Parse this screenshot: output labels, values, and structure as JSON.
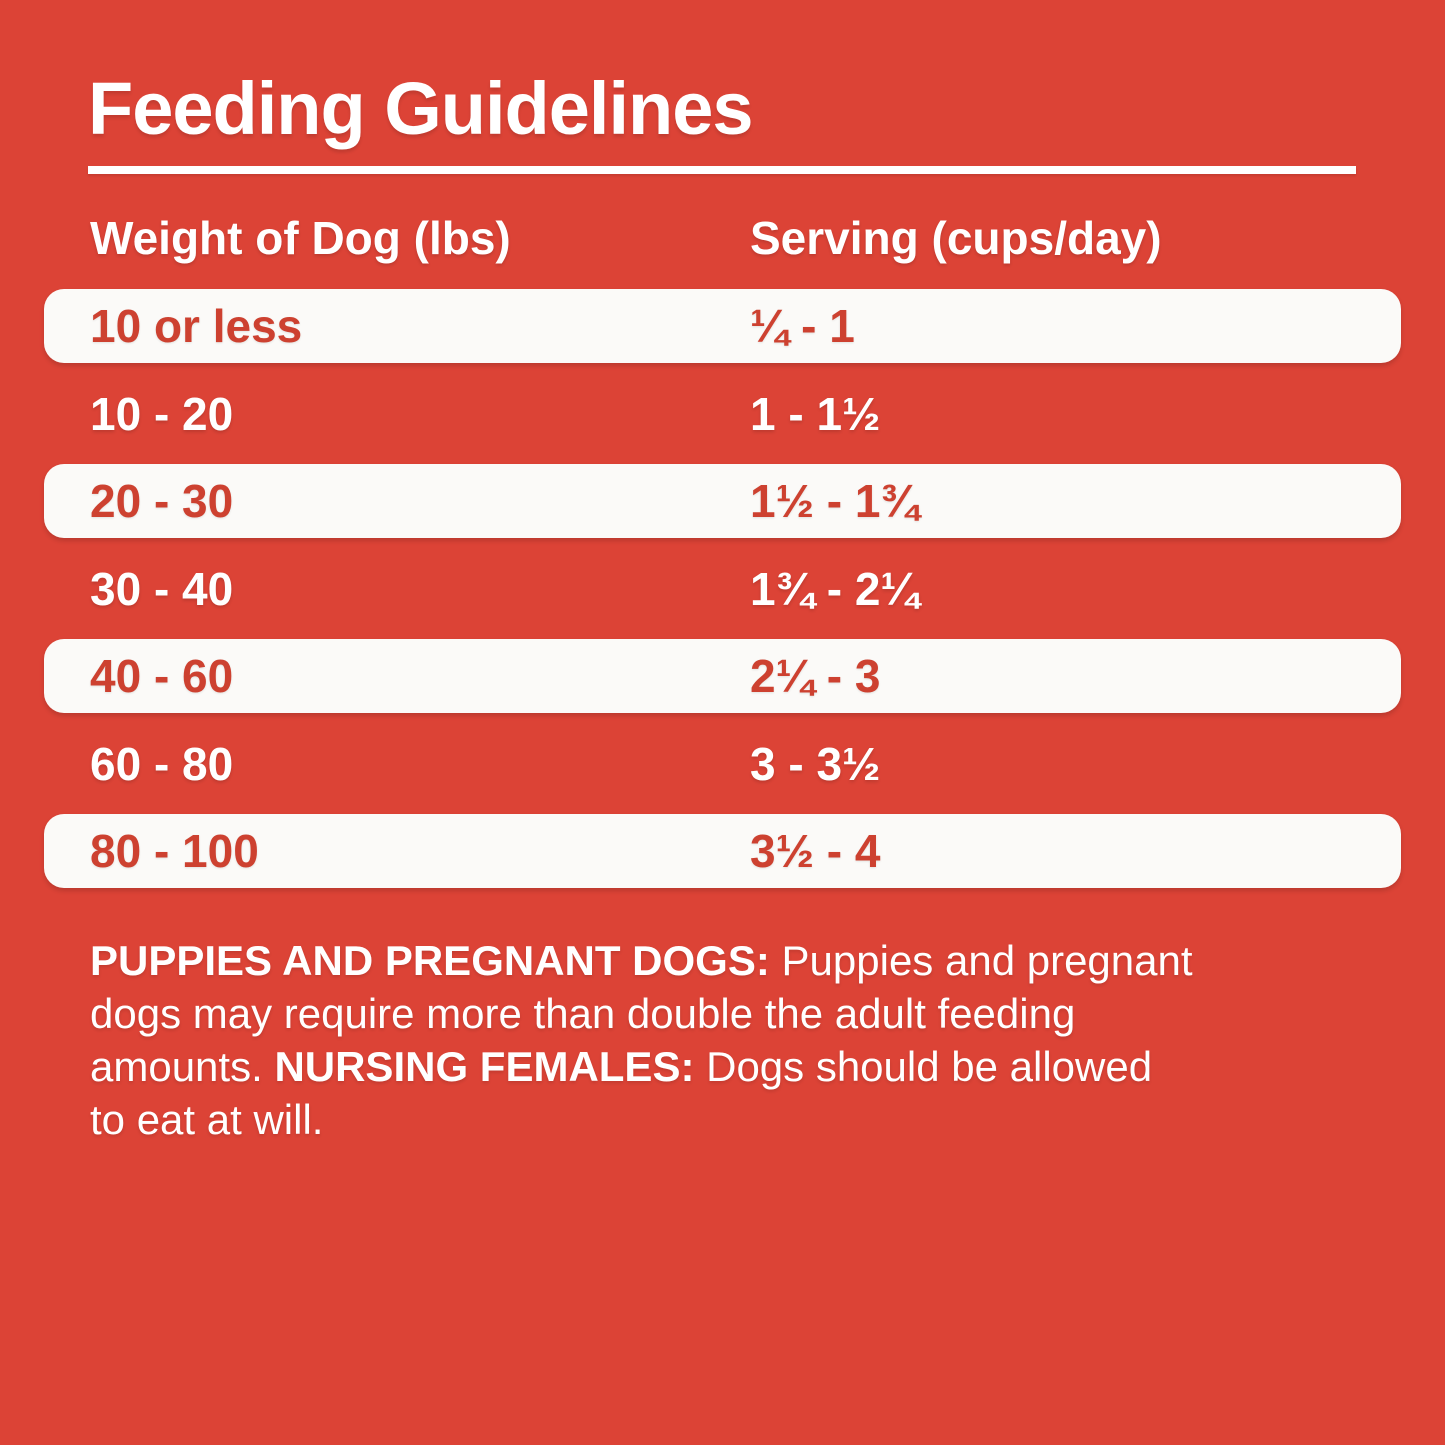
{
  "title": "Feeding Guidelines",
  "table": {
    "headers": {
      "weight": "Weight of Dog (lbs)",
      "serving": "Serving (cups/day)"
    },
    "rows": [
      {
        "weight": "10 or less",
        "serving": "¼ - 1",
        "highlighted": true
      },
      {
        "weight": "10 - 20",
        "serving": "1 - 1½",
        "highlighted": false
      },
      {
        "weight": "20 - 30",
        "serving": "1½ - 1¾",
        "highlighted": true
      },
      {
        "weight": "30 - 40",
        "serving": "1¾ - 2¼",
        "highlighted": false
      },
      {
        "weight": "40 - 60",
        "serving": "2¼ - 3",
        "highlighted": true
      },
      {
        "weight": "60 - 80",
        "serving": "3 - 3½",
        "highlighted": false
      },
      {
        "weight": "80 - 100",
        "serving": "3½ - 4",
        "highlighted": true
      }
    ]
  },
  "note": {
    "lines": [
      {
        "segments": [
          {
            "text": "PUPPIES AND PREGNANT DOGS: ",
            "bold": true
          },
          {
            "text": "Puppies and pregnant",
            "bold": false
          }
        ]
      },
      {
        "segments": [
          {
            "text": "dogs may require more than double the adult feeding",
            "bold": false
          }
        ]
      },
      {
        "segments": [
          {
            "text": "amounts. ",
            "bold": false
          },
          {
            "text": "NURSING FEMALES: ",
            "bold": true
          },
          {
            "text": "Dogs should be allowed",
            "bold": false
          }
        ]
      },
      {
        "segments": [
          {
            "text": "to eat at will.",
            "bold": false
          }
        ]
      }
    ]
  },
  "colors": {
    "background": "#DC4336",
    "row_highlight_bg": "#FBFAF8",
    "text_on_highlight": "#CD4130",
    "text_on_background": "#FFFFFF"
  }
}
